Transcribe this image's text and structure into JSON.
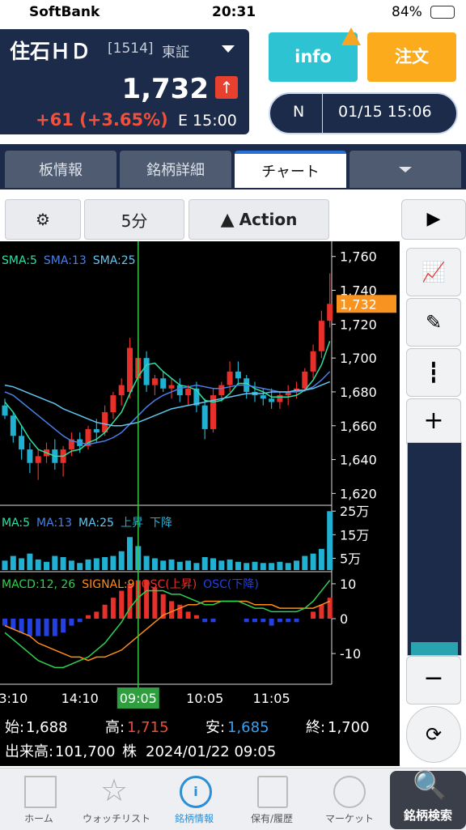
{
  "status_bar": {
    "carrier": "SoftBank",
    "time": "20:31",
    "battery": "84%"
  },
  "header": {
    "name": "住石ＨＤ",
    "code": "[1514]",
    "market": "東証",
    "price": "1,732",
    "change": "+61 (+3.65%)",
    "time": "E 15:00",
    "info_button": "info",
    "order_button": "注文",
    "mode": "N",
    "datetime": "01/15 15:06"
  },
  "tabs": [
    "板情報",
    "銘柄詳細",
    "チャート"
  ],
  "toolbar": {
    "interval": "5分",
    "action": "Action"
  },
  "chart_data": {
    "type": "candlestick",
    "categories": [
      null,
      "3:10",
      null,
      null,
      null,
      null,
      null,
      null,
      null,
      "14:10",
      null,
      null,
      null,
      null,
      null,
      null,
      "09:05",
      null,
      null,
      null,
      null,
      null,
      null,
      null,
      "10:05",
      null,
      null,
      null,
      null,
      null,
      null,
      null,
      "11:05",
      null,
      null,
      null,
      null,
      null,
      null,
      null
    ],
    "highlight": 16,
    "open": [
      1672,
      1666,
      1654,
      1646,
      1638,
      1642,
      1646,
      1638,
      1646,
      1652,
      1648,
      1658,
      1656,
      1668,
      1678,
      1680,
      1688,
      1700,
      1684,
      1688,
      1682,
      1684,
      1678,
      1682,
      1672,
      1658,
      1678,
      1684,
      1692,
      1688,
      1680,
      1678,
      1676,
      1674,
      1678,
      1680,
      1682,
      1692,
      1704,
      1722
    ],
    "high": [
      1676,
      1668,
      1660,
      1650,
      1646,
      1650,
      1652,
      1648,
      1656,
      1656,
      1660,
      1664,
      1672,
      1680,
      1688,
      1712,
      1715,
      1704,
      1690,
      1692,
      1688,
      1688,
      1684,
      1686,
      1676,
      1682,
      1686,
      1698,
      1698,
      1690,
      1686,
      1682,
      1682,
      1680,
      1684,
      1686,
      1694,
      1708,
      1728,
      1750
    ],
    "low": [
      1664,
      1650,
      1640,
      1632,
      1628,
      1638,
      1634,
      1630,
      1642,
      1644,
      1646,
      1650,
      1654,
      1664,
      1672,
      1676,
      1685,
      1680,
      1678,
      1680,
      1676,
      1674,
      1672,
      1668,
      1652,
      1656,
      1674,
      1680,
      1684,
      1676,
      1674,
      1672,
      1670,
      1670,
      1672,
      1676,
      1680,
      1688,
      1700,
      1718
    ],
    "close": [
      1666,
      1654,
      1646,
      1638,
      1642,
      1646,
      1638,
      1646,
      1652,
      1648,
      1658,
      1656,
      1668,
      1678,
      1684,
      1706,
      1700,
      1684,
      1688,
      1682,
      1684,
      1678,
      1682,
      1672,
      1658,
      1678,
      1684,
      1692,
      1688,
      1680,
      1678,
      1676,
      1674,
      1678,
      1680,
      1682,
      1692,
      1704,
      1722,
      1732
    ],
    "up_color": "#e8302a",
    "down_color": "#1fb0d2",
    "ylim": [
      1613,
      1768
    ],
    "yticks": [
      {
        "value": 1620,
        "label": "1,620"
      },
      {
        "value": 1640,
        "label": "1,640"
      },
      {
        "value": 1660,
        "label": "1,660"
      },
      {
        "value": 1680,
        "label": "1,680"
      },
      {
        "value": 1700,
        "label": "1,700"
      },
      {
        "value": 1720,
        "label": "1,720"
      },
      {
        "value": 1740,
        "label": "1,740"
      },
      {
        "value": 1760,
        "label": "1,760"
      }
    ],
    "price_label": {
      "value": 1732,
      "label": "1,732"
    },
    "series": [
      {
        "name": "SMA:5",
        "color": "#2fe0a0",
        "values": [
          1674,
          1668,
          1660,
          1652,
          1646,
          1644,
          1642,
          1642,
          1645,
          1646,
          1650,
          1652,
          1656,
          1662,
          1668,
          1679,
          1689,
          1696,
          1697,
          1692,
          1688,
          1684,
          1683,
          1681,
          1675,
          1674,
          1675,
          1679,
          1685,
          1685,
          1682,
          1680,
          1677,
          1677,
          1677,
          1678,
          1681,
          1687,
          1696,
          1710
        ]
      },
      {
        "name": "SMA:13",
        "color": "#4a80e8",
        "values": [
          1680,
          1678,
          1674,
          1670,
          1666,
          1662,
          1658,
          1654,
          1651,
          1650,
          1649,
          1650,
          1651,
          1653,
          1656,
          1661,
          1666,
          1671,
          1675,
          1678,
          1680,
          1682,
          1683,
          1684,
          1683,
          1682,
          1682,
          1683,
          1684,
          1684,
          1683,
          1682,
          1681,
          1680,
          1680,
          1680,
          1681,
          1683,
          1687,
          1692
        ]
      },
      {
        "name": "SMA:25",
        "color": "#62c6f2",
        "values": [
          1684,
          1683,
          1681,
          1679,
          1677,
          1675,
          1673,
          1670,
          1668,
          1666,
          1664,
          1662,
          1661,
          1660,
          1660,
          1661,
          1662,
          1664,
          1666,
          1668,
          1670,
          1671,
          1672,
          1673,
          1674,
          1675,
          1676,
          1677,
          1678,
          1679,
          1679,
          1679,
          1680,
          1680,
          1680,
          1681,
          1681,
          1682,
          1684,
          1686
        ]
      }
    ],
    "volume": {
      "legend": [
        {
          "name": "MA:5",
          "color": "#2fe0a0"
        },
        {
          "name": "MA:13",
          "color": "#4a80e8"
        },
        {
          "name": "MA:25",
          "color": "#62c6f2"
        },
        {
          "name": "上昇",
          "color": "#1fb0d2"
        },
        {
          "name": "下降",
          "color": "#1fb0d2"
        }
      ],
      "color": "#1fb0d2",
      "values": [
        40000,
        60000,
        50000,
        70000,
        45000,
        35000,
        60000,
        55000,
        40000,
        30000,
        45000,
        50000,
        55000,
        60000,
        80000,
        140000,
        101700,
        60000,
        50000,
        40000,
        45000,
        35000,
        40000,
        30000,
        55000,
        50000,
        40000,
        45000,
        35000,
        30000,
        35000,
        30000,
        30000,
        35000,
        30000,
        40000,
        60000,
        70000,
        90000,
        250000
      ],
      "ylim": [
        0,
        268000
      ],
      "yticks": [
        {
          "value": 50000,
          "label": "5万"
        },
        {
          "value": 150000,
          "label": "15万"
        },
        {
          "value": 250000,
          "label": "25万"
        }
      ]
    },
    "macd": {
      "legend_label": "MACD:12, 26",
      "ylim": [
        -18.8,
        13
      ],
      "yticks": [
        10,
        0,
        -10
      ],
      "series": [
        {
          "name": "SIGNAL:9",
          "color": "#ff8c1a",
          "values": [
            -2,
            -3,
            -4,
            -5,
            -7,
            -8,
            -9,
            -10,
            -11,
            -11,
            -12,
            -11,
            -11,
            -10,
            -9,
            -7,
            -5,
            -3,
            -1,
            1,
            2,
            3,
            4,
            4,
            5,
            5,
            5,
            5,
            5,
            5,
            4,
            4,
            4,
            3,
            3,
            3,
            3,
            3,
            4,
            5
          ]
        },
        {
          "name": "MACD",
          "color": "#30d050",
          "values": [
            -4,
            -6,
            -8,
            -10,
            -12,
            -13,
            -14,
            -14,
            -13,
            -12,
            -11,
            -9,
            -7,
            -4,
            -1,
            3,
            6,
            8,
            8,
            8,
            7,
            7,
            6,
            5,
            4,
            4,
            5,
            5,
            5,
            4,
            3,
            3,
            2,
            2,
            2,
            2,
            3,
            5,
            8,
            11
          ]
        }
      ],
      "osc": {
        "up_name": "OSC(上昇)",
        "down_name": "OSC(下降)",
        "up_color": "#e8302a",
        "down_color": "#2540e0",
        "values": [
          -2,
          -3,
          -4,
          -5,
          -5,
          -5,
          -5,
          -4,
          -2,
          -1,
          1,
          2,
          4,
          6,
          8,
          10,
          11,
          11,
          9,
          7,
          5,
          4,
          2,
          1,
          -1,
          -1,
          0,
          0,
          0,
          -1,
          -1,
          -1,
          -2,
          -1,
          -1,
          -1,
          0,
          2,
          4,
          6
        ]
      }
    }
  },
  "ohlc_info": {
    "open_label": "始:",
    "open": "1,688",
    "high_label": "高:",
    "high": "1,715",
    "low_label": "安:",
    "low": "1,685",
    "close_label": "終:",
    "close": "1,700",
    "volume_label": "出来高:",
    "volume": "101,700",
    "volume_unit": "株",
    "datetime": "2024/01/22 09:05"
  },
  "nav": [
    "ホーム",
    "ウォッチリスト",
    "銘柄情報",
    "保有/履歴",
    "マーケット",
    "銘柄検索"
  ]
}
